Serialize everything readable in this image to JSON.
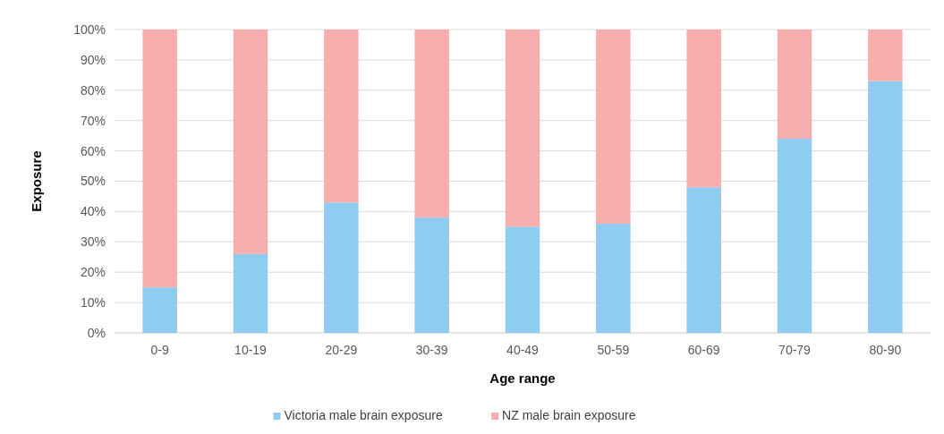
{
  "chart_data": {
    "type": "bar",
    "stacked": true,
    "xlabel": "Age range",
    "ylabel": "Exposure",
    "categories": [
      "0-9",
      "10-19",
      "20-29",
      "30-39",
      "40-49",
      "50-59",
      "60-69",
      "70-79",
      "80-90"
    ],
    "series": [
      {
        "name": "Victoria male brain exposure",
        "color": "#8ecdf0",
        "values": [
          15,
          26,
          43,
          38,
          35,
          36,
          48,
          64,
          83
        ]
      },
      {
        "name": "NZ male brain exposure",
        "color": "#f7aeae",
        "values": [
          85,
          74,
          57,
          62,
          65,
          64,
          52,
          36,
          17
        ]
      }
    ],
    "ylim": [
      0,
      100
    ],
    "yticks": [
      {
        "value": 0,
        "label": "0%"
      },
      {
        "value": 10,
        "label": "10%"
      },
      {
        "value": 20,
        "label": "20%"
      },
      {
        "value": 30,
        "label": "30%"
      },
      {
        "value": 40,
        "label": "40%"
      },
      {
        "value": 50,
        "label": "50%"
      },
      {
        "value": 60,
        "label": "60%"
      },
      {
        "value": 70,
        "label": "70%"
      },
      {
        "value": 80,
        "label": "80%"
      },
      {
        "value": 90,
        "label": "90%"
      },
      {
        "value": 100,
        "label": "100%"
      }
    ],
    "grid": "y",
    "legend": "bottom"
  }
}
